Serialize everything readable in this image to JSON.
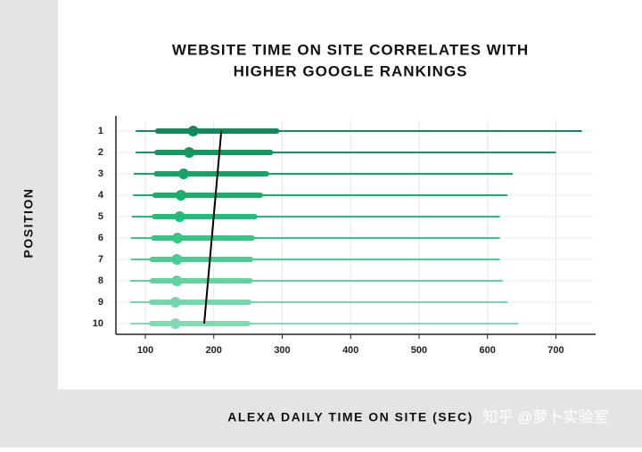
{
  "chart_data": {
    "type": "range",
    "title": [
      "WEBSITE TIME ON SITE CORRELATES WITH",
      "HIGHER GOOGLE RANKINGS"
    ],
    "y_label": "POSITION",
    "x_label": "ALEXA DAILY TIME ON SITE (SEC)",
    "watermark": "知乎 @萝卜实验室",
    "categories": [
      "1",
      "2",
      "3",
      "4",
      "5",
      "6",
      "7",
      "8",
      "9",
      "10"
    ],
    "min": [
      86,
      86,
      83,
      82,
      80,
      79,
      79,
      78,
      78,
      78
    ],
    "q1": [
      118,
      117,
      116,
      114,
      113,
      112,
      110,
      110,
      109,
      109
    ],
    "median": [
      170,
      164,
      156,
      152,
      150,
      147,
      146,
      146,
      144,
      144
    ],
    "q3": [
      292,
      283,
      277,
      268,
      260,
      256,
      254,
      253,
      251,
      250
    ],
    "max": [
      738,
      700,
      637,
      629,
      618,
      618,
      618,
      622,
      629,
      645
    ],
    "colors": [
      "#0f8a58",
      "#12975f",
      "#16a366",
      "#1aae6d",
      "#22bd79",
      "#35c585",
      "#4ccc93",
      "#62d2a0",
      "#72d7aa",
      "#80dbb2"
    ],
    "trend": {
      "start": 211,
      "end": 186,
      "color": "#000000"
    },
    "xlim": [
      57,
      758
    ],
    "xticks": [
      100,
      200,
      300,
      400,
      500,
      600,
      700
    ],
    "grid": true
  }
}
